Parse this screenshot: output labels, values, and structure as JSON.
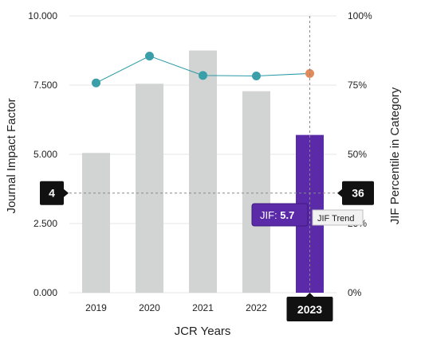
{
  "chart_data": {
    "type": "bar",
    "categories": [
      "2019",
      "2020",
      "2021",
      "2022",
      "2023"
    ],
    "series": [
      {
        "values": [
          5.05,
          7.55,
          8.75,
          7.28,
          5.7
        ],
        "axis": "left",
        "type": "bar"
      },
      {
        "values": [
          75.8,
          85.5,
          78.5,
          78.3,
          79.2
        ],
        "axis": "right",
        "type": "line"
      }
    ],
    "xlabel": "JCR Years",
    "ylabel": "Journal Impact Factor",
    "ylabel_right": "JIF Percentile in Category",
    "ylim": [
      0,
      10
    ],
    "ylim_right": [
      0,
      100
    ],
    "yticks": [
      "0.000",
      "2.500",
      "5.000",
      "7.500",
      "10.000"
    ],
    "yticks_right": [
      "0%",
      "25%",
      "50%",
      "75%",
      "100%"
    ],
    "grid": true,
    "highlight_category": "2023",
    "crosshair": {
      "left_value": "4",
      "right_value": "36",
      "left_level": 3.6
    },
    "tooltip": {
      "label": "JIF:",
      "value": "5.7"
    },
    "trend_tooltip": "JIF Trend",
    "colors": {
      "bar": "#d2d4d3",
      "bar_highlight": "#5a2aa8",
      "line": "#2a9aa6",
      "point": "#3a9fa8",
      "point_highlight": "#e4895a",
      "badge": "#111111"
    }
  }
}
